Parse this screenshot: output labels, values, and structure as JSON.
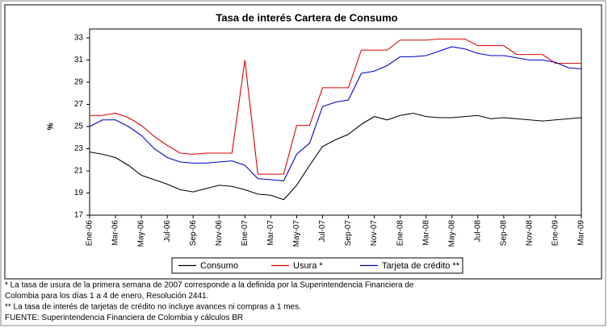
{
  "chart_data": {
    "type": "line",
    "title": "Tasa de interés Cartera de Consumo",
    "y_label": "%",
    "categories": [
      "Ene-06",
      null,
      "Mar-06",
      null,
      "May-06",
      null,
      "Jul-06",
      null,
      "Sep-06",
      null,
      "Nov-06",
      null,
      "Ene-07",
      null,
      "Mar-07",
      null,
      "May-07",
      null,
      "Jul-07",
      null,
      "Sep-07",
      null,
      "Nov-07",
      null,
      "Ene-08",
      null,
      "Mar-08",
      null,
      "May-08",
      null,
      "Jul-08",
      null,
      "Sep-08",
      null,
      "Nov-08",
      null,
      "Ene-09",
      null,
      "Mar-09"
    ],
    "series": [
      {
        "name": "Consumo",
        "color": "#000000",
        "values": [
          22.7,
          22.5,
          22.2,
          21.5,
          20.6,
          20.2,
          19.8,
          19.3,
          19.1,
          19.4,
          19.7,
          19.6,
          19.3,
          18.9,
          18.8,
          18.4,
          19.7,
          21.5,
          23.2,
          23.8,
          24.3,
          25.2,
          25.9,
          25.6,
          26.0,
          26.2,
          25.9,
          25.8,
          25.8,
          25.9,
          26.0,
          25.7,
          25.8,
          25.7,
          25.6,
          25.5,
          25.6,
          25.7,
          25.8
        ]
      },
      {
        "name": "Usura *",
        "color": "#e00000",
        "values": [
          26.0,
          26.0,
          26.2,
          25.8,
          25.1,
          24.1,
          23.3,
          22.6,
          22.5,
          22.6,
          22.6,
          22.6,
          31.0,
          20.7,
          20.7,
          20.7,
          25.1,
          25.1,
          28.5,
          28.5,
          28.5,
          31.9,
          31.9,
          31.9,
          32.8,
          32.8,
          32.8,
          32.9,
          32.9,
          32.9,
          32.3,
          32.3,
          32.3,
          31.5,
          31.5,
          31.5,
          30.7,
          30.7,
          30.7
        ]
      },
      {
        "name": "Tarjeta de crédito **",
        "color": "#0000d0",
        "values": [
          25.0,
          25.6,
          25.6,
          25.0,
          24.2,
          23.0,
          22.2,
          21.8,
          21.7,
          21.7,
          21.8,
          21.9,
          21.5,
          20.3,
          20.2,
          20.1,
          22.5,
          23.5,
          26.8,
          27.2,
          27.4,
          29.8,
          30.0,
          30.5,
          31.3,
          31.3,
          31.4,
          31.8,
          32.2,
          32.0,
          31.6,
          31.4,
          31.4,
          31.2,
          31.0,
          31.0,
          30.8,
          30.3,
          30.2
        ]
      }
    ],
    "ylim": [
      17,
      33
    ],
    "yticks": [
      17,
      19,
      21,
      23,
      25,
      27,
      29,
      31,
      33
    ],
    "grid": false,
    "legend": "bottom",
    "notes": [
      "* La tasa de usura de la primera semana de 2007 corresponde a la definida por la Superintendencia Financiera de",
      "Colombia para los días 1 a 4 de enero, Resolución 2441.",
      "** La tasa de interés de tarjetas de crédito no incluye avances ni compras a 1 mes.",
      "FUENTE: Superintendencia Financiera de Colombia y cálculos BR"
    ]
  }
}
